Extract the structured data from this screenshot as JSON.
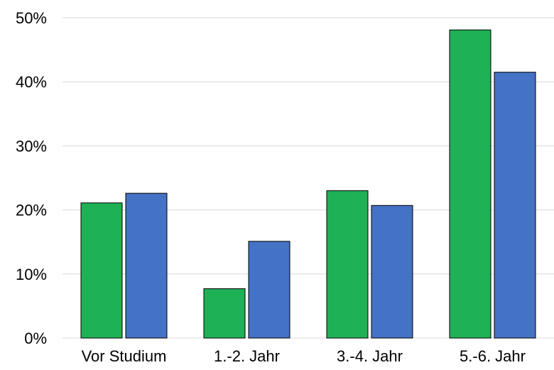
{
  "chart_data": {
    "type": "bar",
    "categories": [
      "Vor Studium",
      "1.-2. Jahr",
      "3.-4. Jahr",
      "5.-6. Jahr"
    ],
    "series": [
      {
        "color": "#1eb155",
        "values": [
          21.1,
          7.7,
          23.0,
          48.1
        ]
      },
      {
        "color": "#4472c4",
        "values": [
          22.6,
          15.1,
          20.7,
          41.5
        ]
      }
    ],
    "y_ticks": [
      "0%",
      "10%",
      "20%",
      "30%",
      "40%",
      "50%"
    ],
    "ylim": [
      0,
      50
    ],
    "grid": true,
    "legend": "none"
  }
}
